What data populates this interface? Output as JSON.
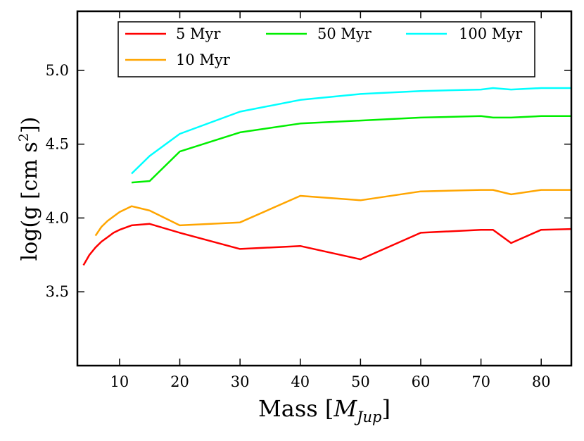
{
  "chart_data": {
    "type": "line",
    "title": "",
    "xlabel": {
      "text": "Mass [",
      "var": "M",
      "sub": "Jup",
      "close": "]"
    },
    "ylabel": {
      "text": "log(g [cm s",
      "sup": "2",
      "close": "])"
    },
    "xlim": [
      3,
      85
    ],
    "ylim": [
      3.0,
      5.4
    ],
    "xticks": [
      10,
      20,
      30,
      40,
      50,
      60,
      70,
      80
    ],
    "yticks": [
      3.5,
      4.0,
      4.5,
      5.0
    ],
    "xtick_labels": [
      "10",
      "20",
      "30",
      "40",
      "50",
      "60",
      "70",
      "80"
    ],
    "ytick_labels": [
      "3.5",
      "4.0",
      "4.5",
      "5.0"
    ],
    "grid": false,
    "legend_position": "top",
    "series": [
      {
        "name": "5 Myr",
        "color": "#ff0000",
        "x": [
          4,
          5,
          6,
          7,
          8,
          9,
          10,
          12,
          15,
          20,
          30,
          40,
          50,
          60,
          70,
          72,
          75,
          80,
          85
        ],
        "y": [
          3.68,
          3.75,
          3.8,
          3.84,
          3.87,
          3.9,
          3.92,
          3.95,
          3.96,
          3.9,
          3.79,
          3.81,
          3.72,
          3.9,
          3.92,
          3.92,
          3.83,
          3.92,
          3.925
        ]
      },
      {
        "name": "10 Myr",
        "color": "#ffa500",
        "x": [
          6,
          7,
          8,
          9,
          10,
          12,
          15,
          20,
          30,
          40,
          50,
          60,
          70,
          72,
          75,
          80,
          85
        ],
        "y": [
          3.88,
          3.94,
          3.98,
          4.01,
          4.04,
          4.08,
          4.05,
          3.95,
          3.97,
          4.15,
          4.12,
          4.18,
          4.19,
          4.19,
          4.16,
          4.19,
          4.19
        ]
      },
      {
        "name": "50 Myr",
        "color": "#00ee00",
        "x": [
          12,
          15,
          20,
          30,
          40,
          50,
          60,
          70,
          72,
          75,
          80,
          85
        ],
        "y": [
          4.24,
          4.25,
          4.45,
          4.58,
          4.64,
          4.66,
          4.68,
          4.69,
          4.68,
          4.68,
          4.69,
          4.69
        ]
      },
      {
        "name": "100 Myr",
        "color": "#00ffff",
        "x": [
          12,
          15,
          20,
          30,
          40,
          50,
          60,
          70,
          72,
          75,
          80,
          85
        ],
        "y": [
          4.3,
          4.42,
          4.57,
          4.72,
          4.8,
          4.84,
          4.86,
          4.87,
          4.88,
          4.87,
          4.88,
          4.88
        ]
      }
    ]
  }
}
